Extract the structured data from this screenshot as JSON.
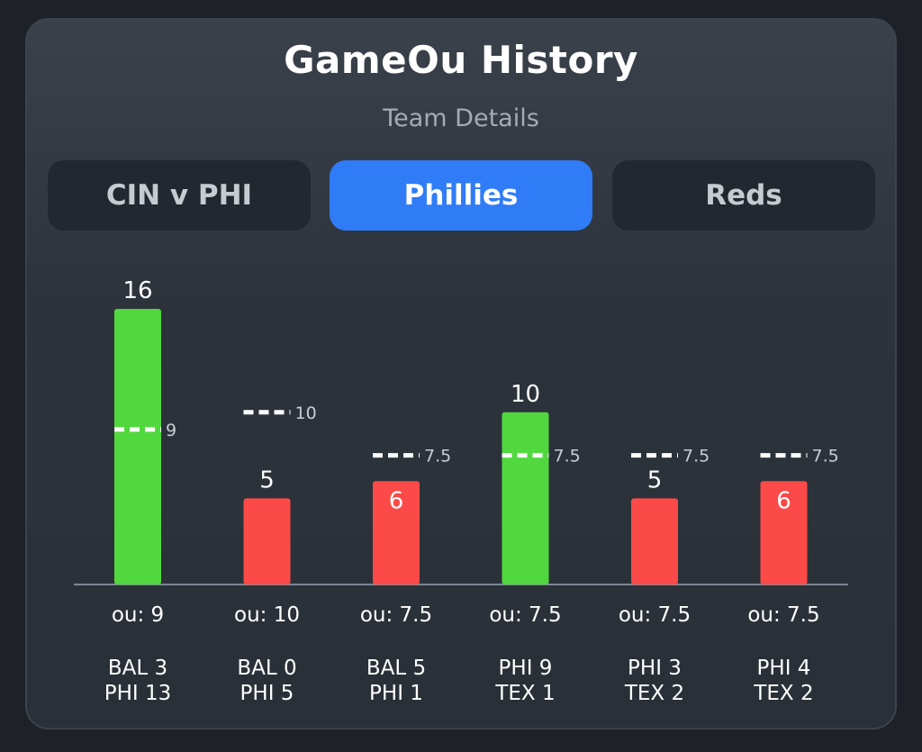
{
  "header": {
    "title": "GameOu History",
    "subtitle": "Team Details"
  },
  "tabs": [
    {
      "label": "CIN v PHI",
      "active": false
    },
    {
      "label": "Phillies",
      "active": true
    },
    {
      "label": "Reds",
      "active": false
    }
  ],
  "colors": {
    "over": "#52d83f",
    "under": "#fb4a47",
    "tab_active": "#2f7cf6",
    "line_marker": "#ffffff",
    "line_label": "#c9cdd3"
  },
  "chart_data": {
    "type": "bar",
    "categories": [
      "BAL 3 PHI 13",
      "BAL 0 PHI 5",
      "BAL 5 PHI 1",
      "PHI 9 TEX 1",
      "PHI 3 TEX 2",
      "PHI 4 TEX 2"
    ],
    "games": [
      {
        "lines": [
          "BAL 3",
          "PHI 13"
        ],
        "total": 16,
        "ou": 9,
        "ou_label": "ou: 9",
        "ou_line_label": "9",
        "result": "over"
      },
      {
        "lines": [
          "BAL 0",
          "PHI 5"
        ],
        "total": 5,
        "ou": 10,
        "ou_label": "ou: 10",
        "ou_line_label": "10",
        "result": "under"
      },
      {
        "lines": [
          "BAL 5",
          "PHI 1"
        ],
        "total": 6,
        "ou": 7.5,
        "ou_label": "ou: 7.5",
        "ou_line_label": "7.5",
        "result": "under"
      },
      {
        "lines": [
          "PHI 9",
          "TEX 1"
        ],
        "total": 10,
        "ou": 7.5,
        "ou_label": "ou: 7.5",
        "ou_line_label": "7.5",
        "result": "over"
      },
      {
        "lines": [
          "PHI 3",
          "TEX 2"
        ],
        "total": 5,
        "ou": 7.5,
        "ou_label": "ou: 7.5",
        "ou_line_label": "7.5",
        "result": "under"
      },
      {
        "lines": [
          "PHI 4",
          "TEX 2"
        ],
        "total": 6,
        "ou": 7.5,
        "ou_label": "ou: 7.5",
        "ou_line_label": "7.5",
        "result": "under"
      }
    ],
    "ylim": [
      0,
      16
    ],
    "grid": false,
    "legend": "none"
  }
}
